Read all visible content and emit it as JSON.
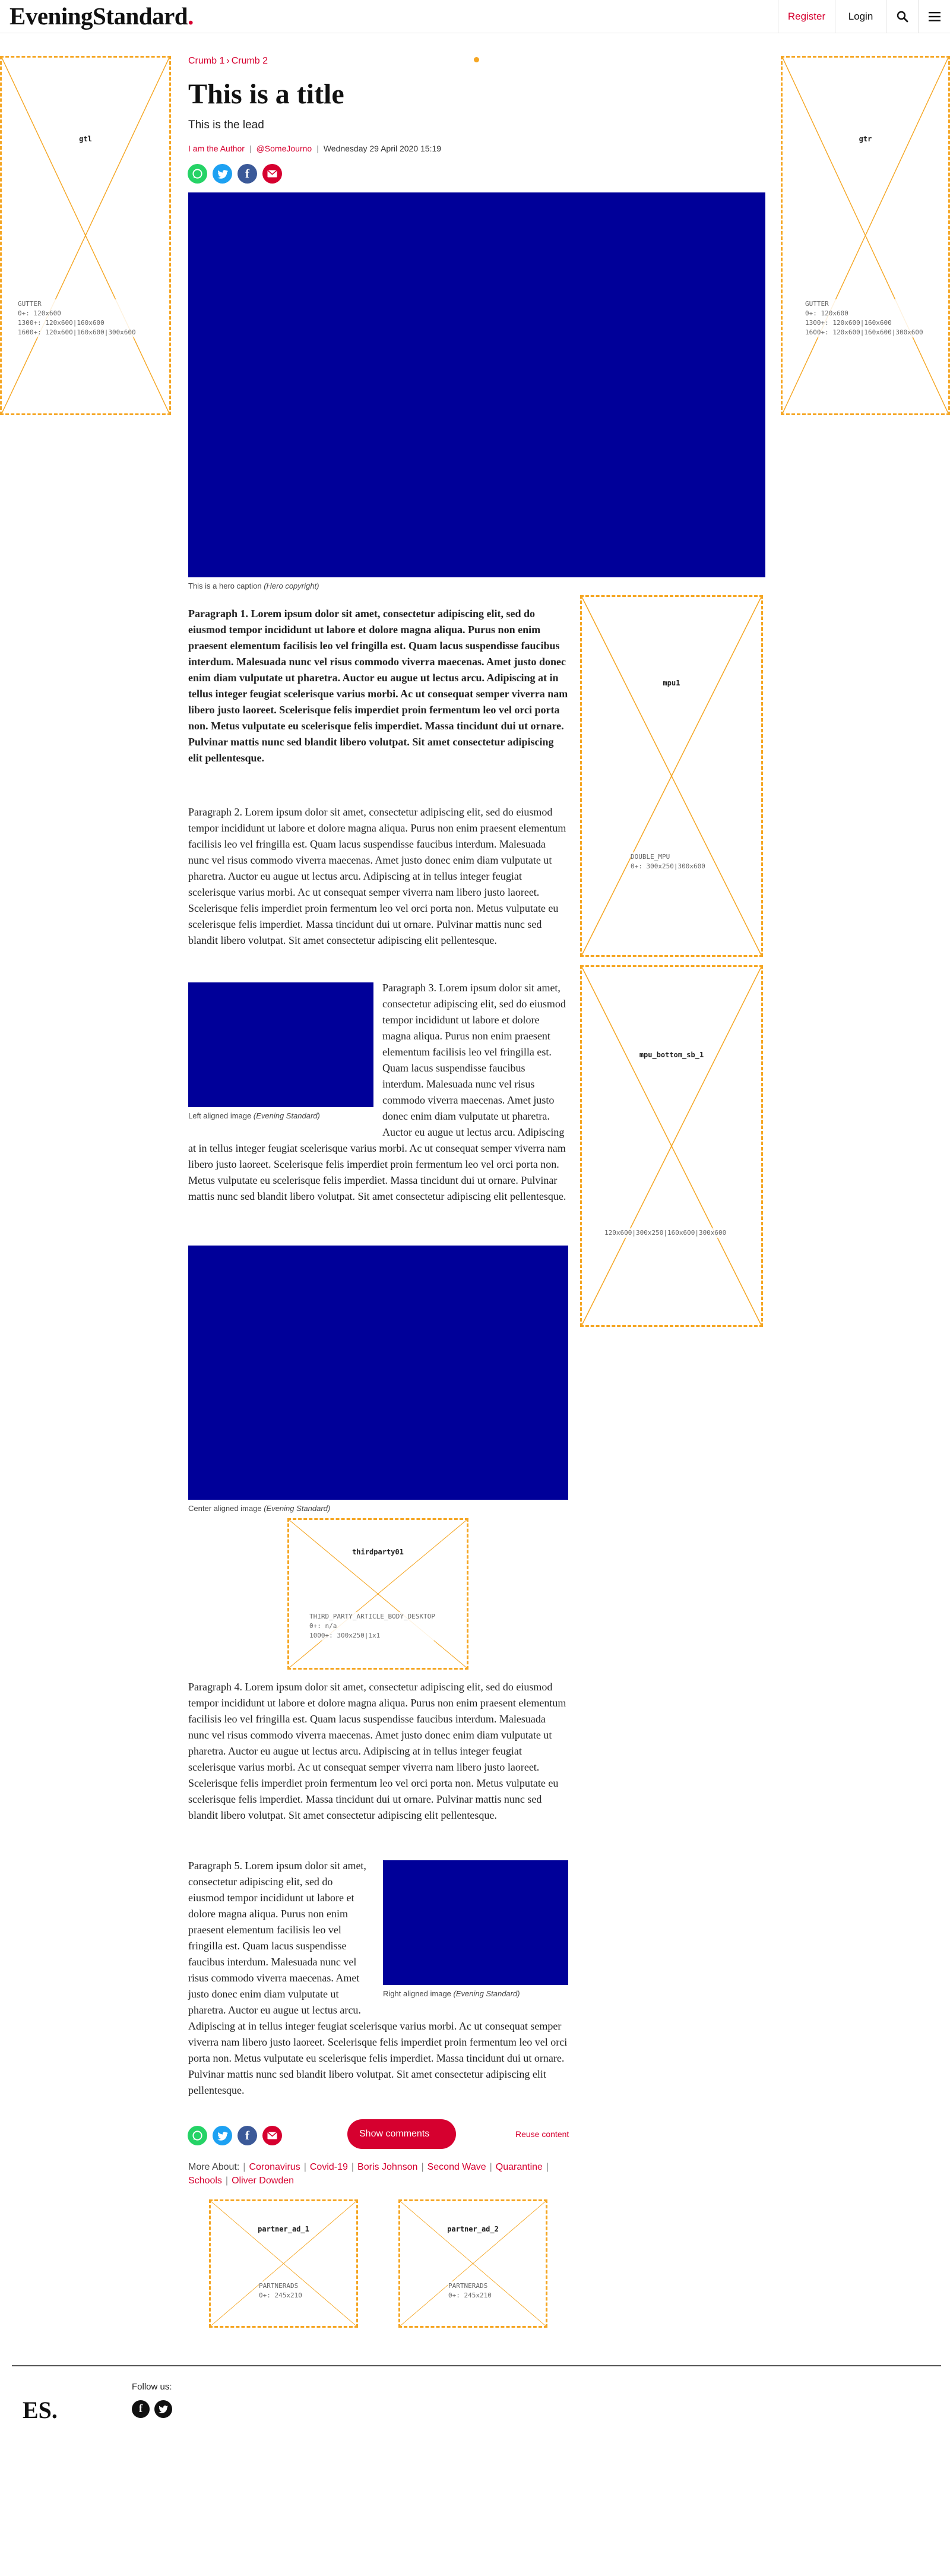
{
  "header": {
    "logo": "EveningStandard",
    "logo_dot": ".",
    "register": "Register",
    "login": "Login",
    "search_icon": "search-icon",
    "menu_icon": "menu-icon"
  },
  "ads": {
    "gutter_left": {
      "name": "gtl",
      "meta": "GUTTER\n0+: 120x600\n1300+: 120x600|160x600\n1600+: 120x600|160x600|300x600"
    },
    "gutter_right": {
      "name": "gtr",
      "meta": "GUTTER\n0+: 120x600\n1300+: 120x600|160x600\n1600+: 120x600|160x600|300x600"
    },
    "mpu1": {
      "name": "mpu1",
      "meta": "DOUBLE_MPU\n0+: 300x250|300x600"
    },
    "mpu_bottom": {
      "name": "mpu_bottom_sb_1",
      "meta": "120x600|300x250|160x600|300x600"
    },
    "thirdparty": {
      "name": "thirdparty01",
      "meta": "THIRD_PARTY_ARTICLE_BODY_DESKTOP\n0+: n/a\n1000+: 300x250|1x1"
    },
    "partner1": {
      "name": "partner_ad_1",
      "meta": "PARTNERADS\n0+: 245x210"
    },
    "partner2": {
      "name": "partner_ad_2",
      "meta": "PARTNERADS\n0+: 245x210"
    }
  },
  "article": {
    "breadcrumb": [
      "Crumb 1",
      "Crumb 2"
    ],
    "breadcrumb_sep": "›",
    "title": "This is a title",
    "lead": "This is the lead",
    "author": "I am the Author",
    "handle": "@SomeJourno",
    "date": "Wednesday 29 April 2020 15:19",
    "hero_caption": "This is a hero caption",
    "hero_credit": "(Hero copyright)",
    "para1": "Paragraph 1. Lorem ipsum dolor sit amet, consectetur adipiscing elit, sed do eiusmod tempor incididunt ut labore et dolore magna aliqua. Purus non enim praesent elementum facilisis leo vel fringilla est. Quam lacus suspendisse faucibus interdum. Malesuada nunc vel risus commodo viverra maecenas. Amet justo donec enim diam vulputate ut pharetra. Auctor eu augue ut lectus arcu. Adipiscing at in tellus integer feugiat scelerisque varius morbi. Ac ut consequat semper viverra nam libero justo laoreet. Scelerisque felis imperdiet proin fermentum leo vel orci porta non. Metus vulputate eu scelerisque felis imperdiet. Massa tincidunt dui ut ornare. Pulvinar mattis nunc sed blandit libero volutpat. Sit amet consectetur adipiscing elit pellentesque.",
    "para2": "Paragraph 2. Lorem ipsum dolor sit amet, consectetur adipiscing elit, sed do eiusmod tempor incididunt ut labore et dolore magna aliqua. Purus non enim praesent elementum facilisis leo vel fringilla est. Quam lacus suspendisse faucibus interdum. Malesuada nunc vel risus commodo viverra maecenas. Amet justo donec enim diam vulputate ut pharetra. Auctor eu augue ut lectus arcu. Adipiscing at in tellus integer feugiat scelerisque varius morbi. Ac ut consequat semper viverra nam libero justo laoreet. Scelerisque felis imperdiet proin fermentum leo vel orci porta non. Metus vulputate eu scelerisque felis imperdiet. Massa tincidunt dui ut ornare. Pulvinar mattis nunc sed blandit libero volutpat. Sit amet consectetur adipiscing elit pellentesque.",
    "para3": "Paragraph 3. Lorem ipsum dolor sit amet, consectetur adipiscing elit, sed do eiusmod tempor incididunt ut labore et dolore magna aliqua. Purus non enim praesent elementum facilisis leo vel fringilla est. Quam lacus suspendisse faucibus interdum. Malesuada nunc vel risus commodo viverra maecenas. Amet justo donec enim diam vulputate ut pharetra. Auctor eu augue ut lectus arcu. Adipiscing at in tellus integer feugiat scelerisque varius morbi. Ac ut consequat semper viverra nam libero justo laoreet. Scelerisque felis imperdiet proin fermentum leo vel orci porta non. Metus vulputate eu scelerisque felis imperdiet. Massa tincidunt dui ut ornare. Pulvinar mattis nunc sed blandit libero volutpat. Sit amet consectetur adipiscing elit pellentesque.",
    "left_caption": "Left aligned image",
    "left_credit": "(Evening Standard)",
    "center_caption": "Center aligned image",
    "center_credit": "(Evening Standard)",
    "para4": "Paragraph 4. Lorem ipsum dolor sit amet, consectetur adipiscing elit, sed do eiusmod tempor incididunt ut labore et dolore magna aliqua. Purus non enim praesent elementum facilisis leo vel fringilla est. Quam lacus suspendisse faucibus interdum. Malesuada nunc vel risus commodo viverra maecenas. Amet justo donec enim diam vulputate ut pharetra. Auctor eu augue ut lectus arcu. Adipiscing at in tellus integer feugiat scelerisque varius morbi. Ac ut consequat semper viverra nam libero justo laoreet. Scelerisque felis imperdiet proin fermentum leo vel orci porta non. Metus vulputate eu scelerisque felis imperdiet. Massa tincidunt dui ut ornare. Pulvinar mattis nunc sed blandit libero volutpat. Sit amet consectetur adipiscing elit pellentesque.",
    "para5": "Paragraph 5. Lorem ipsum dolor sit amet, consectetur adipiscing elit, sed do eiusmod tempor incididunt ut labore et dolore magna aliqua. Purus non enim praesent elementum facilisis leo vel fringilla est. Quam lacus suspendisse faucibus interdum. Malesuada nunc vel risus commodo viverra maecenas. Amet justo donec enim diam vulputate ut pharetra. Auctor eu augue ut lectus arcu. Adipiscing at in tellus integer feugiat scelerisque varius morbi. Ac ut consequat semper viverra nam libero justo laoreet. Scelerisque felis imperdiet proin fermentum leo vel orci porta non. Metus vulputate eu scelerisque felis imperdiet. Massa tincidunt dui ut ornare. Pulvinar mattis nunc sed blandit libero volutpat. Sit amet consectetur adipiscing elit pellentesque.",
    "right_caption": "Right aligned image",
    "right_credit": "(Evening Standard)"
  },
  "share": {
    "whatsapp_icon": "whatsapp-icon",
    "twitter_icon": "twitter-icon",
    "facebook_icon": "facebook-icon",
    "email_icon": "email-icon"
  },
  "comments": {
    "show_comments": "Show comments",
    "reuse": "Reuse content"
  },
  "more_about": {
    "label": "More About:",
    "tags": [
      "Coronavirus",
      "Covid-19",
      "Boris Johnson",
      "Second Wave",
      "Quarantine",
      "Schools",
      "Oliver Dowden"
    ]
  },
  "footer": {
    "logo": "ES.",
    "follow": "Follow us:",
    "facebook_icon": "facebook-icon",
    "twitter_icon": "twitter-icon"
  },
  "colors": {
    "brand_red": "#d6002f",
    "ad_border": "#f5a623",
    "image_placeholder": "#000099"
  }
}
